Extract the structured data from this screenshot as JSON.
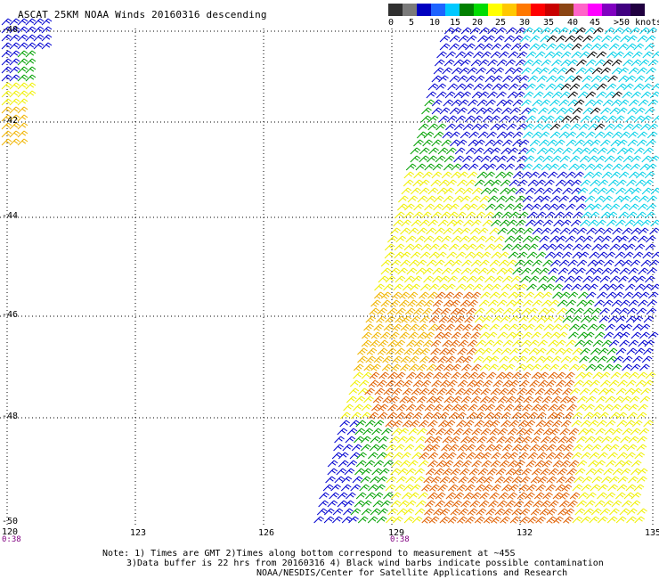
{
  "title": "ASCAT 25KM NOAA Winds 20160316 descending",
  "colorbar": {
    "colors": [
      "#303030",
      "#7a7a7a",
      "#0000c0",
      "#1e64ff",
      "#00c8ff",
      "#008000",
      "#00dc00",
      "#ffff00",
      "#ffc800",
      "#ff7800",
      "#ff0000",
      "#c80000",
      "#8b4513",
      "#ff64c8",
      "#ff00ff",
      "#8000c0",
      "#400080",
      "#200040"
    ],
    "labels": [
      "0",
      "5",
      "10",
      "15",
      "20",
      "25",
      "30",
      "35",
      "40",
      "45",
      ">50 knots"
    ]
  },
  "map": {
    "lat_labels": [
      "-40",
      "-42",
      "-44",
      "-46",
      "-48",
      "-50"
    ],
    "lon_labels": [
      "120",
      "123",
      "126",
      "129",
      "132",
      "135"
    ],
    "time_labels": [
      "0:38",
      "0:38"
    ],
    "speed_colors": {
      "black": "#000000",
      "cyan": "#00d0e8",
      "blue": "#0000d0",
      "green": "#00a000",
      "yellow": "#f0f000",
      "gold": "#f0b400",
      "orange": "#e06000"
    }
  },
  "notes": {
    "line1": "Note: 1) Times are GMT 2)Times along bottom correspond to measurement at ~45S",
    "line2": "3)Data buffer is 22 hrs from 20160316 4) Black wind barbs indicate possible contamination",
    "line3": "NOAA/NESDIS/Center for Satellite Applications and Research"
  }
}
